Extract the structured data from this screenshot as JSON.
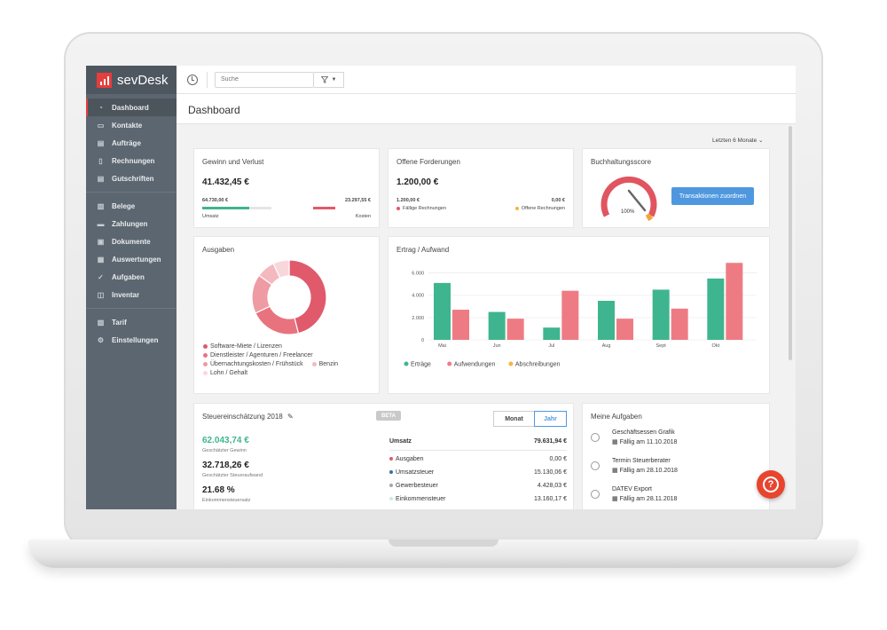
{
  "app": {
    "brand": "sevDesk"
  },
  "sidebar": {
    "items": [
      {
        "label": "Dashboard",
        "icon": "dashboard-icon"
      },
      {
        "label": "Kontakte",
        "icon": "contacts-icon"
      },
      {
        "label": "Aufträge",
        "icon": "orders-icon"
      },
      {
        "label": "Rechnungen",
        "icon": "invoice-icon"
      },
      {
        "label": "Gutschriften",
        "icon": "credit-note-icon"
      },
      {
        "label": "Belege",
        "icon": "receipt-icon"
      },
      {
        "label": "Zahlungen",
        "icon": "payment-icon"
      },
      {
        "label": "Dokumente",
        "icon": "document-icon"
      },
      {
        "label": "Auswertungen",
        "icon": "report-icon"
      },
      {
        "label": "Aufgaben",
        "icon": "check-icon"
      },
      {
        "label": "Inventar",
        "icon": "inventory-icon"
      },
      {
        "label": "Tarif",
        "icon": "tariff-icon"
      },
      {
        "label": "Einstellungen",
        "icon": "gear-icon"
      }
    ]
  },
  "topbar": {
    "search_placeholder": "Suche"
  },
  "page": {
    "title": "Dashboard",
    "period": "Letzten 6 Monate"
  },
  "profit": {
    "title": "Gewinn und Verlust",
    "total": "41.432,45 €",
    "revenue_value": "64.730,00 €",
    "cost_value": "23.297,55 €",
    "revenue_label": "Umsatz",
    "cost_label": "Kosten",
    "revenue_fill": 0.68,
    "cost_fill": 0.32
  },
  "receivables": {
    "title": "Offene Forderungen",
    "total": "1.200,00 €",
    "due_value": "1.200,00 €",
    "due_label": "Fällige Rechnungen",
    "open_value": "0,00 €",
    "open_label": "Offene Rechnungen"
  },
  "score": {
    "title": "Buchhaltungsscore",
    "value_label": "100%",
    "level": 1.0,
    "button": "Transaktionen zuordnen"
  },
  "expenses": {
    "title": "Ausgaben",
    "legend": [
      {
        "label": "Software-Miete / Lizenzen",
        "color": "#e05a6b"
      },
      {
        "label": "Dienstleister / Agenturen / Freelancer",
        "color": "#e8737f"
      },
      {
        "label": "Übernachtungskosten / Frühstück",
        "color": "#ee9ba4"
      },
      {
        "label": "Benzin",
        "color": "#f3b9bf"
      },
      {
        "label": "Lohn / Gehalt",
        "color": "#f8d7db"
      }
    ],
    "slices": [
      0.46,
      0.22,
      0.17,
      0.08,
      0.07
    ]
  },
  "chart_data": {
    "type": "bar",
    "title": "Ertrag / Aufwand",
    "categories": [
      "Mai",
      "Jun",
      "Jul",
      "Aug",
      "Sept",
      "Okt"
    ],
    "series": [
      {
        "name": "Erträge",
        "color": "#3fb58f",
        "values": [
          5100,
          2500,
          1100,
          3500,
          4500,
          5500
        ]
      },
      {
        "name": "Aufwendungen",
        "color": "#ee7b84",
        "values": [
          2700,
          1900,
          4400,
          1900,
          2800,
          6900
        ]
      },
      {
        "name": "Abschreibungen",
        "color": "#f4b63d",
        "values": [
          0,
          0,
          0,
          0,
          0,
          0
        ]
      }
    ],
    "yticks": [
      "0",
      "2.000",
      "4.000",
      "6.000"
    ],
    "ylim": [
      0,
      7000
    ],
    "grid": true,
    "legend": "bottom"
  },
  "tax": {
    "title": "Steuereinschätzung 2018",
    "badge": "BETA",
    "toggle_month": "Monat",
    "toggle_year": "Jahr",
    "profit_value": "62.043,74 €",
    "profit_label": "Geschätzter Gewinn",
    "tax_value": "32.718,26 €",
    "tax_label": "Geschätzter Steueraufwand",
    "rate_value": "21.68 %",
    "rate_label": "Einkommensteuersatz",
    "rows": [
      {
        "label": "Umsatz",
        "value": "79.631,94 €",
        "color": ""
      },
      {
        "label": "Ausgaben",
        "value": "0,00 €",
        "color": "#e05a6b"
      },
      {
        "label": "Umsatzsteuer",
        "value": "15.130,06 €",
        "color": "#3a6ea5"
      },
      {
        "label": "Gewerbesteuer",
        "value": "4.428,03 €",
        "color": "#a0a7ae"
      },
      {
        "label": "Einkommensteuer",
        "value": "13.160,17 €",
        "color": "#cfe9df"
      }
    ]
  },
  "tasks": {
    "title": "Meine Aufgaben",
    "items": [
      {
        "title": "Geschäftsessen Grafik",
        "due": "Fällig am 11.10.2018"
      },
      {
        "title": "Termin Steuerberater",
        "due": "Fällig am 28.10.2018"
      },
      {
        "title": "DATEV Export",
        "due": "Fällig am 28.11.2018"
      }
    ]
  }
}
